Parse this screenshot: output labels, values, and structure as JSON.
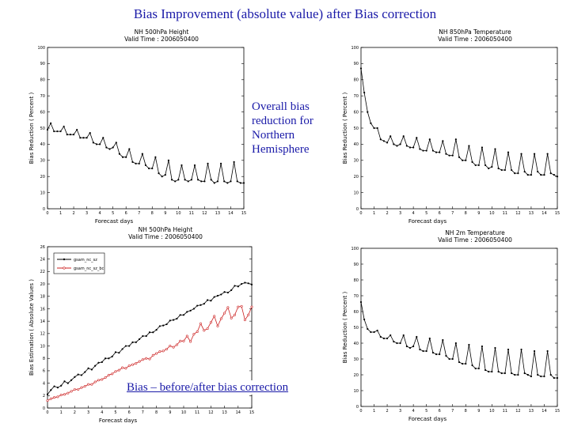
{
  "page": {
    "title": "Bias Improvement (absolute value) after Bias correction",
    "annotation_hemisphere": "Overall bias reduction for Northern Hemisphere",
    "annotation_bias": "Bias – before/after bias correction"
  },
  "colors": {
    "annotation_text": "#1a1aa8",
    "series_before": "#000000",
    "series_after": "#cc2222"
  },
  "chart_data": [
    {
      "type": "line",
      "title": "NH   500hPa  Height",
      "subtitle": "Valid Time : 2006050400",
      "xlabel": "Forecast days",
      "ylabel": "Bias Reduction ( Percent )",
      "xlim": [
        0,
        15
      ],
      "ylim": [
        0,
        100
      ],
      "xticks": [
        0,
        1,
        2,
        3,
        4,
        5,
        6,
        7,
        8,
        9,
        10,
        11,
        12,
        13,
        14,
        15
      ],
      "yticks": [
        0,
        10,
        20,
        30,
        40,
        50,
        60,
        70,
        80,
        90,
        100
      ],
      "series": [
        {
          "x": [
            0,
            0.25,
            0.5,
            0.75,
            1,
            1.25,
            1.5,
            1.75,
            2,
            2.25,
            2.5,
            2.75,
            3,
            3.25,
            3.5,
            3.75,
            4,
            4.25,
            4.5,
            4.75,
            5,
            5.25,
            5.5,
            5.75,
            6,
            6.25,
            6.5,
            6.75,
            7,
            7.25,
            7.5,
            7.75,
            8,
            8.25,
            8.5,
            8.75,
            9,
            9.25,
            9.5,
            9.75,
            10,
            10.25,
            10.5,
            10.75,
            11,
            11.25,
            11.5,
            11.75,
            12,
            12.25,
            12.5,
            12.75,
            13,
            13.25,
            13.5,
            13.75,
            14,
            14.25,
            14.5,
            14.75,
            15
          ],
          "values": [
            49,
            53,
            48,
            48,
            48,
            51,
            46,
            46,
            46,
            49,
            44,
            44,
            44,
            47,
            41,
            40,
            40,
            44,
            38,
            37,
            38,
            41,
            34,
            32,
            32,
            37,
            29,
            28,
            28,
            34,
            27,
            25,
            25,
            32,
            22,
            20,
            21,
            30,
            18,
            17,
            18,
            27,
            18,
            17,
            18,
            27,
            18,
            17,
            17,
            28,
            18,
            16,
            17,
            28,
            17,
            16,
            17,
            29,
            17,
            16,
            16
          ]
        }
      ]
    },
    {
      "type": "line",
      "title": "NH   850hPa  Temperature",
      "subtitle": "Valid Time : 2006050400",
      "xlabel": "Forecast days",
      "ylabel": "Bias Reduction ( Percent )",
      "xlim": [
        0,
        15
      ],
      "ylim": [
        0,
        100
      ],
      "xticks": [
        0,
        1,
        2,
        3,
        4,
        5,
        6,
        7,
        8,
        9,
        10,
        11,
        12,
        13,
        14,
        15
      ],
      "yticks": [
        0,
        10,
        20,
        30,
        40,
        50,
        60,
        70,
        80,
        90,
        100
      ],
      "series": [
        {
          "x": [
            0,
            0.25,
            0.5,
            0.75,
            1,
            1.25,
            1.5,
            1.75,
            2,
            2.25,
            2.5,
            2.75,
            3,
            3.25,
            3.5,
            3.75,
            4,
            4.25,
            4.5,
            4.75,
            5,
            5.25,
            5.5,
            5.75,
            6,
            6.25,
            6.5,
            6.75,
            7,
            7.25,
            7.5,
            7.75,
            8,
            8.25,
            8.5,
            8.75,
            9,
            9.25,
            9.5,
            9.75,
            10,
            10.25,
            10.5,
            10.75,
            11,
            11.25,
            11.5,
            11.75,
            12,
            12.25,
            12.5,
            12.75,
            13,
            13.25,
            13.5,
            13.75,
            14,
            14.25,
            14.5,
            14.75,
            15
          ],
          "values": [
            87,
            72,
            60,
            53,
            50,
            50,
            43,
            42,
            41,
            45,
            40,
            39,
            40,
            45,
            39,
            38,
            38,
            44,
            37,
            36,
            36,
            43,
            36,
            35,
            35,
            42,
            34,
            33,
            33,
            43,
            32,
            30,
            30,
            39,
            29,
            27,
            27,
            38,
            27,
            25,
            26,
            37,
            25,
            24,
            24,
            35,
            24,
            22,
            22,
            34,
            23,
            21,
            21,
            34,
            23,
            21,
            21,
            34,
            22,
            21,
            20
          ]
        }
      ]
    },
    {
      "type": "line",
      "title": "NH   500hPa  Height",
      "subtitle": "Valid Time : 2006050400",
      "xlabel": "Forecast days",
      "ylabel": "Bias Estimation ( Absolute Values )",
      "xlim": [
        0,
        15
      ],
      "ylim": [
        0,
        26
      ],
      "xticks": [
        0,
        1,
        2,
        3,
        4,
        5,
        6,
        7,
        8,
        9,
        10,
        11,
        12,
        13,
        14,
        15
      ],
      "yticks": [
        0,
        2,
        4,
        6,
        8,
        10,
        12,
        14,
        16,
        18,
        20,
        22,
        24,
        26
      ],
      "legend": [
        "gsam_nc_sz",
        "gsam_nc_sz_bc"
      ],
      "series": [
        {
          "name": "gsam_nc_sz",
          "x": [
            0,
            0.25,
            0.5,
            0.75,
            1,
            1.25,
            1.5,
            1.75,
            2,
            2.25,
            2.5,
            2.75,
            3,
            3.25,
            3.5,
            3.75,
            4,
            4.25,
            4.5,
            4.75,
            5,
            5.25,
            5.5,
            5.75,
            6,
            6.25,
            6.5,
            6.75,
            7,
            7.25,
            7.5,
            7.75,
            8,
            8.25,
            8.5,
            8.75,
            9,
            9.25,
            9.5,
            9.75,
            10,
            10.25,
            10.5,
            10.75,
            11,
            11.25,
            11.5,
            11.75,
            12,
            12.25,
            12.5,
            12.75,
            13,
            13.25,
            13.5,
            13.75,
            14,
            14.25,
            14.5,
            14.75,
            15
          ],
          "values": [
            2.2,
            2.9,
            3.5,
            3.3,
            3.6,
            4.3,
            4.0,
            4.5,
            5.0,
            5.4,
            5.3,
            5.8,
            6.4,
            6.2,
            6.8,
            7.3,
            7.4,
            8.0,
            8.0,
            8.3,
            9.0,
            8.9,
            9.5,
            10.0,
            10.0,
            10.6,
            10.6,
            11.1,
            11.6,
            11.6,
            12.2,
            12.2,
            12.6,
            13.2,
            13.3,
            13.5,
            14.1,
            14.2,
            14.4,
            15.0,
            15.0,
            15.5,
            15.7,
            16.0,
            16.5,
            16.6,
            16.8,
            17.4,
            17.3,
            17.9,
            18.1,
            18.3,
            18.7,
            18.6,
            19.0,
            19.7,
            19.6,
            20.0,
            20.2,
            20.1,
            19.9
          ]
        },
        {
          "name": "gsam_nc_sz_bc",
          "x": [
            0,
            0.25,
            0.5,
            0.75,
            1,
            1.25,
            1.5,
            1.75,
            2,
            2.25,
            2.5,
            2.75,
            3,
            3.25,
            3.5,
            3.75,
            4,
            4.25,
            4.5,
            4.75,
            5,
            5.25,
            5.5,
            5.75,
            6,
            6.25,
            6.5,
            6.75,
            7,
            7.25,
            7.5,
            7.75,
            8,
            8.25,
            8.5,
            8.75,
            9,
            9.25,
            9.5,
            9.75,
            10,
            10.25,
            10.5,
            10.75,
            11,
            11.25,
            11.5,
            11.75,
            12,
            12.25,
            12.5,
            12.75,
            13,
            13.25,
            13.5,
            13.75,
            14,
            14.25,
            14.5,
            14.75,
            15
          ],
          "values": [
            1.2,
            1.5,
            1.7,
            1.8,
            2.1,
            2.2,
            2.4,
            2.7,
            3.0,
            3.0,
            3.3,
            3.5,
            3.8,
            3.8,
            4.2,
            4.5,
            4.6,
            4.9,
            5.3,
            5.5,
            5.9,
            6.1,
            6.5,
            6.4,
            6.8,
            7.0,
            7.2,
            7.5,
            7.8,
            8.0,
            7.9,
            8.5,
            8.8,
            9.1,
            9.2,
            9.5,
            10.0,
            9.8,
            10.2,
            10.8,
            10.8,
            11.6,
            10.7,
            11.9,
            12.3,
            13.6,
            12.5,
            12.8,
            13.8,
            14.8,
            13.2,
            14.4,
            15.3,
            16.2,
            14.5,
            15.0,
            16.3,
            16.4,
            14.2,
            15.0,
            16.3
          ]
        }
      ]
    },
    {
      "type": "line",
      "title": "NH   2m  Temperature",
      "subtitle": "Valid Time : 2006050400",
      "xlabel": "Forecast days",
      "ylabel": "Bias Reduction ( Percent )",
      "xlim": [
        0,
        15
      ],
      "ylim": [
        0,
        100
      ],
      "xticks": [
        0,
        1,
        2,
        3,
        4,
        5,
        6,
        7,
        8,
        9,
        10,
        11,
        12,
        13,
        14,
        15
      ],
      "yticks": [
        0,
        10,
        20,
        30,
        40,
        50,
        60,
        70,
        80,
        90,
        100
      ],
      "series": [
        {
          "x": [
            0,
            0.25,
            0.5,
            0.75,
            1,
            1.25,
            1.5,
            1.75,
            2,
            2.25,
            2.5,
            2.75,
            3,
            3.25,
            3.5,
            3.75,
            4,
            4.25,
            4.5,
            4.75,
            5,
            5.25,
            5.5,
            5.75,
            6,
            6.25,
            6.5,
            6.75,
            7,
            7.25,
            7.5,
            7.75,
            8,
            8.25,
            8.5,
            8.75,
            9,
            9.25,
            9.5,
            9.75,
            10,
            10.25,
            10.5,
            10.75,
            11,
            11.25,
            11.5,
            11.75,
            12,
            12.25,
            12.5,
            12.75,
            13,
            13.25,
            13.5,
            13.75,
            14,
            14.25,
            14.5,
            14.75,
            15
          ],
          "values": [
            66,
            55,
            49,
            47,
            47,
            48,
            44,
            43,
            43,
            45,
            41,
            40,
            40,
            45,
            38,
            37,
            38,
            44,
            36,
            35,
            35,
            43,
            34,
            33,
            33,
            42,
            32,
            30,
            30,
            40,
            28,
            27,
            27,
            39,
            26,
            24,
            24,
            38,
            23,
            22,
            22,
            37,
            22,
            21,
            21,
            36,
            21,
            20,
            20,
            36,
            21,
            20,
            19,
            35,
            20,
            19,
            19,
            35,
            20,
            18,
            18
          ]
        }
      ]
    }
  ]
}
